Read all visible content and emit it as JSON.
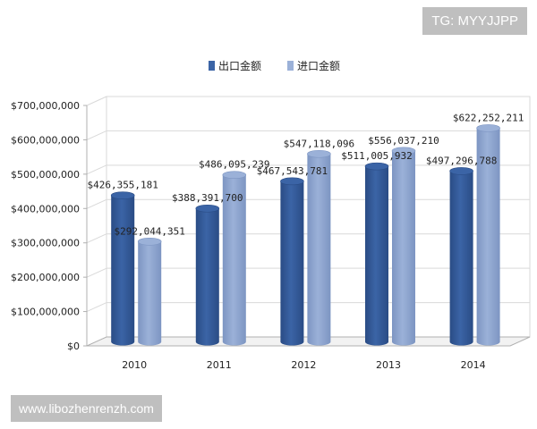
{
  "watermarks": {
    "top": "TG: MYYJJPP",
    "bottom": "www.libozhenrenzh.com"
  },
  "colors": {
    "export": "#3b64a6",
    "export_dark": "#2a4c85",
    "import": "#9bb1d8",
    "import_dark": "#7d95c2",
    "grid": "#d9d9d9",
    "axis": "#b0b0b0",
    "text": "#222222"
  },
  "chart_data": {
    "type": "bar",
    "categories": [
      "2010",
      "2011",
      "2012",
      "2013",
      "2014"
    ],
    "series": [
      {
        "name": "出口金额",
        "values": [
          426355181,
          388391700,
          467543781,
          511005932,
          497296788
        ],
        "labels": [
          "$426,355,181",
          "$388,391,700",
          "$467,543,781",
          "$511,005,932",
          "$497,296,788"
        ]
      },
      {
        "name": "进口金额",
        "values": [
          292044351,
          486095239,
          547118096,
          556037210,
          622252211
        ],
        "labels": [
          "$292,044,351",
          "$486,095,239",
          "$547,118,096",
          "$556,037,210",
          "$622,252,211"
        ]
      }
    ],
    "yticks": [
      0,
      100000000,
      200000000,
      300000000,
      400000000,
      500000000,
      600000000,
      700000000
    ],
    "ytick_labels": [
      "$0",
      "$100,000,000",
      "$200,000,000",
      "$300,000,000",
      "$400,000,000",
      "$500,000,000",
      "$600,000,000",
      "$700,000,000"
    ],
    "ylim": [
      0,
      700000000
    ],
    "grid": true,
    "legend_position": "top-center",
    "style": "3d-cylinder"
  }
}
